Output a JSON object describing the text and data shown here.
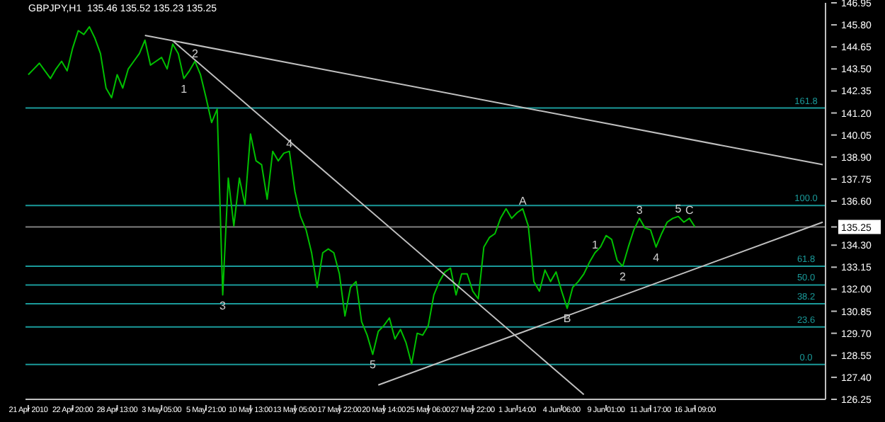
{
  "chart_data": {
    "type": "line",
    "title": "GBPJPY,H1  135.46 135.52 135.23 135.25",
    "categories": [
      "21 Apr 2010",
      null,
      null,
      null,
      null,
      null,
      null,
      null,
      "22 Apr 20:00",
      null,
      null,
      null,
      null,
      null,
      null,
      null,
      "28 Apr 13:00",
      null,
      null,
      null,
      null,
      null,
      null,
      null,
      "3 May 05:00",
      null,
      null,
      null,
      null,
      null,
      null,
      null,
      "5 May 21:00",
      null,
      null,
      null,
      null,
      null,
      null,
      null,
      "10 May 13:00",
      null,
      null,
      null,
      null,
      null,
      null,
      null,
      "13 May 05:00",
      null,
      null,
      null,
      null,
      null,
      null,
      null,
      "17 May 22:00",
      null,
      null,
      null,
      null,
      null,
      null,
      null,
      "20 May 14:00",
      null,
      null,
      null,
      null,
      null,
      null,
      null,
      "25 May 06:00",
      null,
      null,
      null,
      null,
      null,
      null,
      null,
      "27 May 22:00",
      null,
      null,
      null,
      null,
      null,
      null,
      null,
      "1 Jun 14:00",
      null,
      null,
      null,
      null,
      null,
      null,
      null,
      "4 Jun 06:00",
      null,
      null,
      null,
      null,
      null,
      null,
      null,
      "9 Jun 01:00",
      null,
      null,
      null,
      null,
      null,
      null,
      null,
      "11 Jun 17:00",
      null,
      null,
      null,
      null,
      null,
      null,
      null,
      "16 Jun 09:00",
      null,
      null,
      null,
      null,
      null,
      null,
      null,
      null,
      null,
      null,
      null,
      null,
      null,
      null,
      null,
      null,
      null,
      null,
      null,
      null,
      null,
      null,
      null
    ],
    "series": [
      {
        "color": "#00c000",
        "values": [
          143.2,
          143.5,
          143.8,
          143.4,
          143.0,
          143.5,
          143.9,
          143.4,
          144.6,
          145.5,
          145.3,
          145.7,
          145.1,
          144.3,
          142.5,
          142.0,
          143.2,
          142.5,
          143.5,
          143.9,
          144.3,
          145.0,
          143.7,
          143.9,
          144.1,
          143.5,
          144.8,
          144.3,
          143.0,
          143.4,
          143.9,
          143.2,
          142.0,
          140.7,
          141.4,
          131.7,
          137.8,
          135.3,
          137.8,
          136.4,
          140.1,
          138.7,
          138.5,
          136.7,
          139.2,
          138.7,
          139.1,
          139.2,
          137.1,
          135.8,
          135.1,
          133.9,
          132.1,
          133.9,
          134.1,
          133.9,
          132.8,
          130.6,
          132.1,
          132.4,
          130.3,
          129.6,
          128.6,
          129.8,
          130.1,
          130.5,
          129.4,
          129.9,
          129.2,
          128.1,
          129.7,
          129.6,
          130.1,
          131.7,
          132.4,
          132.9,
          133.1,
          131.7,
          132.8,
          132.8,
          131.9,
          131.5,
          134.2,
          134.7,
          134.9,
          135.7,
          136.2,
          135.7,
          136.0,
          136.2,
          135.3,
          132.4,
          131.9,
          133.0,
          132.4,
          132.9,
          131.9,
          131.0,
          132.1,
          132.4,
          132.8,
          133.4,
          133.9,
          134.2,
          134.8,
          134.6,
          133.5,
          133.2,
          134.2,
          135.1,
          135.7,
          135.2,
          135.1,
          134.2,
          134.9,
          135.5,
          135.7,
          135.8,
          135.5,
          135.7,
          135.25,
          null,
          null,
          null,
          null,
          null,
          null,
          null,
          null,
          null,
          null,
          null,
          null,
          null,
          null,
          null,
          null,
          null,
          null,
          null,
          null,
          null,
          null,
          null
        ]
      },
      {
        "color": "#c0c0c0",
        "values": [
          null,
          null,
          null,
          null,
          null,
          null,
          null,
          null,
          null,
          null,
          null,
          null,
          null,
          null,
          null,
          null,
          null,
          null,
          null,
          null,
          null,
          145.25,
          null,
          null,
          null,
          null,
          null,
          null,
          null,
          null,
          null,
          null,
          null,
          null,
          null,
          null,
          null,
          null,
          null,
          null,
          null,
          null,
          null,
          null,
          null,
          null,
          null,
          null,
          null,
          null,
          null,
          null,
          null,
          null,
          null,
          null,
          null,
          null,
          null,
          null,
          null,
          null,
          null,
          null,
          null,
          null,
          null,
          null,
          null,
          null,
          null,
          null,
          null,
          null,
          null,
          null,
          null,
          null,
          null,
          null,
          null,
          null,
          null,
          null,
          null,
          null,
          null,
          null,
          null,
          null,
          null,
          null,
          null,
          null,
          null,
          null,
          null,
          null,
          null,
          null,
          null,
          null,
          null,
          null,
          null,
          null,
          null,
          null,
          null,
          null,
          null,
          null,
          null,
          null,
          null,
          null,
          null,
          null,
          null,
          null,
          null,
          null,
          null,
          null,
          null,
          null,
          null,
          null,
          null,
          null,
          null,
          null,
          null,
          null,
          null,
          null,
          null,
          null,
          null,
          null,
          null,
          null,
          null,
          138.5
        ]
      },
      {
        "color": "#c0c0c0",
        "values": [
          null,
          null,
          null,
          null,
          null,
          null,
          null,
          null,
          null,
          null,
          null,
          null,
          null,
          null,
          null,
          null,
          null,
          null,
          null,
          null,
          null,
          null,
          null,
          null,
          null,
          null,
          144.97,
          null,
          null,
          null,
          null,
          null,
          null,
          null,
          null,
          null,
          null,
          null,
          null,
          null,
          null,
          null,
          null,
          null,
          null,
          null,
          null,
          null,
          null,
          null,
          null,
          null,
          null,
          null,
          null,
          null,
          null,
          null,
          null,
          null,
          null,
          null,
          null,
          null,
          null,
          null,
          null,
          null,
          null,
          null,
          null,
          null,
          null,
          null,
          null,
          null,
          null,
          null,
          null,
          null,
          null,
          null,
          null,
          null,
          null,
          null,
          null,
          null,
          null,
          null,
          null,
          null,
          null,
          null,
          null,
          null,
          null,
          null,
          null,
          null,
          126.5,
          null,
          null,
          null,
          null,
          null,
          null,
          null,
          null,
          null,
          null,
          null,
          null,
          null,
          null,
          null,
          null,
          null,
          null,
          null,
          null,
          null,
          null,
          null,
          null,
          null,
          null,
          null,
          null,
          null,
          null,
          null,
          null,
          null,
          null,
          null,
          null,
          null,
          null,
          null,
          null,
          null,
          null,
          null
        ]
      },
      {
        "color": "#c0c0c0",
        "values": [
          null,
          null,
          null,
          null,
          null,
          null,
          null,
          null,
          null,
          null,
          null,
          null,
          null,
          null,
          null,
          null,
          null,
          null,
          null,
          null,
          null,
          null,
          null,
          null,
          null,
          null,
          null,
          null,
          null,
          null,
          null,
          null,
          null,
          null,
          null,
          null,
          null,
          null,
          null,
          null,
          null,
          null,
          null,
          null,
          null,
          null,
          null,
          null,
          null,
          null,
          null,
          null,
          null,
          null,
          null,
          null,
          null,
          null,
          null,
          null,
          null,
          null,
          null,
          127.0,
          null,
          null,
          null,
          null,
          null,
          null,
          null,
          null,
          null,
          null,
          null,
          null,
          null,
          null,
          null,
          null,
          null,
          null,
          null,
          null,
          null,
          null,
          null,
          null,
          null,
          null,
          null,
          null,
          null,
          null,
          null,
          null,
          null,
          null,
          null,
          null,
          null,
          null,
          null,
          null,
          null,
          null,
          null,
          null,
          null,
          null,
          null,
          null,
          null,
          null,
          null,
          null,
          null,
          null,
          null,
          null,
          null,
          null,
          null,
          null,
          null,
          null,
          null,
          null,
          null,
          null,
          null,
          null,
          null,
          null,
          null,
          null,
          null,
          null,
          null,
          null,
          null,
          null,
          null,
          135.5
        ]
      }
    ],
    "ylim": [
      126.25,
      146.95
    ],
    "yticks": [
      146.95,
      {
        "value": 145.8,
        "label": "145.80"
      },
      144.65,
      {
        "value": 143.5,
        "label": "143.50"
      },
      142.35,
      {
        "value": 141.2,
        "label": "141.20"
      },
      140.05,
      {
        "value": 138.9,
        "label": "138.90"
      },
      137.75,
      {
        "value": 136.6,
        "label": "136.60"
      },
      135.25,
      {
        "value": 134.3,
        "label": "134.30"
      },
      133.15,
      {
        "value": 132,
        "label": "132.00"
      },
      130.85,
      {
        "value": 129.7,
        "label": "129.70"
      },
      128.55,
      {
        "value": 127.4,
        "label": "127.40"
      },
      126.25
    ],
    "ref_lines": [
      {
        "axis": "y",
        "value": 141.46,
        "color": "#1a9a9a"
      },
      {
        "axis": "y",
        "value": 136.37,
        "color": "#1a9a9a"
      },
      {
        "axis": "y",
        "value": 133.2,
        "color": "#1a9a9a"
      },
      {
        "axis": "y",
        "value": 132.22,
        "color": "#1a9a9a"
      },
      {
        "axis": "y",
        "value": 131.24,
        "color": "#1a9a9a"
      },
      {
        "axis": "y",
        "value": 130.03,
        "color": "#1a9a9a"
      },
      {
        "axis": "y",
        "value": 128.07,
        "color": "#1a9a9a"
      },
      {
        "axis": "y",
        "value": 135.25,
        "color": "#808080"
      }
    ],
    "annotations": [
      {
        "text": "1",
        "y": 143.0
      },
      {
        "text": "2",
        "y": 143.9
      },
      {
        "text": "3",
        "y": 131.7
      },
      {
        "text": "4",
        "y": 139.2
      },
      {
        "text": "5",
        "y": 128.6
      },
      {
        "text": "A",
        "y": 136.2
      },
      {
        "text": "B",
        "y": 131.0
      },
      {
        "text": "1",
        "y": 133.9
      },
      {
        "text": "2",
        "y": 133.2
      },
      {
        "text": "3",
        "y": 135.7
      },
      {
        "text": "4",
        "y": 134.2
      },
      {
        "text": "5",
        "y": 135.8
      },
      {
        "text": "C",
        "y": 135.7
      },
      {
        "text": "161.8",
        "y": 141.46
      },
      {
        "text": "100.0",
        "y": 136.37
      },
      {
        "text": "61.8",
        "y": 133.2
      },
      {
        "text": "50.0",
        "y": 132.22
      },
      {
        "text": "38.2",
        "y": 131.24
      },
      {
        "text": "23.6",
        "y": 130.03
      },
      {
        "text": "0.0",
        "y": 128.07
      }
    ],
    "marker": "none",
    "line_style": "solid"
  }
}
